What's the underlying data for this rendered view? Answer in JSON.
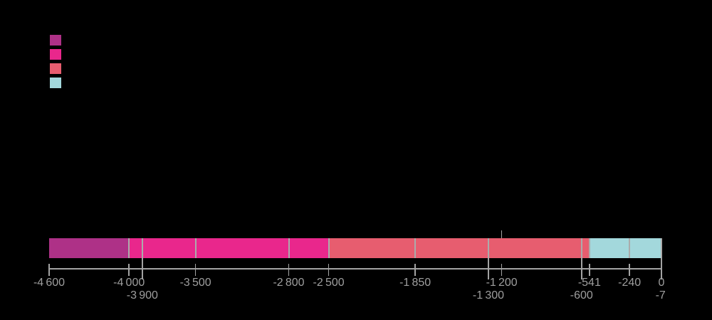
{
  "colors": {
    "background": "#000000",
    "axis_gray": "#A3A3A3",
    "label_gray": "#9E9E9E",
    "divider_gray": "#ABABAB",
    "purple": "#AE3187",
    "pink": "#E9278C",
    "salmon": "#E75D6F",
    "light_blue": "#A3D8DC"
  },
  "legend": {
    "swatches": [
      {
        "name": "legend-swatch-1",
        "color": "#AE3187"
      },
      {
        "name": "legend-swatch-2",
        "color": "#E9278C"
      },
      {
        "name": "legend-swatch-3",
        "color": "#E75D6F"
      },
      {
        "name": "legend-swatch-4",
        "color": "#A3D8DC"
      }
    ]
  },
  "chart_data": {
    "type": "bar",
    "subtype": "horizontal-stacked-timeline",
    "title": "",
    "xlabel": "",
    "ylabel": "",
    "grid": false,
    "legend_position": "top-left",
    "axis": {
      "min": -4600,
      "max": 0
    },
    "series": [
      {
        "name": "group-1",
        "color": "#AE3187",
        "segments": [
          {
            "start": -4600,
            "end": -4000
          }
        ]
      },
      {
        "name": "group-2",
        "color": "#E9278C",
        "segments": [
          {
            "start": -4000,
            "end": -3900
          },
          {
            "start": -3900,
            "end": -3500
          },
          {
            "start": -3500,
            "end": -2800
          },
          {
            "start": -2800,
            "end": -2500
          }
        ]
      },
      {
        "name": "group-3",
        "color": "#E75D6F",
        "segments": [
          {
            "start": -2500,
            "end": -1850
          },
          {
            "start": -1850,
            "end": -1300
          },
          {
            "start": -1300,
            "end": -600
          },
          {
            "start": -600,
            "end": -541
          }
        ]
      },
      {
        "name": "group-4",
        "color": "#A3D8DC",
        "segments": [
          {
            "start": -541,
            "end": -240
          },
          {
            "start": -240,
            "end": 0
          }
        ]
      }
    ],
    "ticks": [
      {
        "value": -4600,
        "label": "-4 600",
        "row": 1,
        "long": false,
        "line": true,
        "marker_above": false
      },
      {
        "value": -4000,
        "label": "-4 000",
        "row": 1,
        "long": false,
        "line": true,
        "marker_above": false
      },
      {
        "value": -3900,
        "label": "-3 900",
        "row": 2,
        "long": true,
        "line": true,
        "marker_above": false
      },
      {
        "value": -3500,
        "label": "-3 500",
        "row": 1,
        "long": false,
        "line": true,
        "marker_above": false
      },
      {
        "value": -2800,
        "label": "-2 800",
        "row": 1,
        "long": false,
        "line": true,
        "marker_above": false
      },
      {
        "value": -2500,
        "label": "-2 500",
        "row": 1,
        "long": false,
        "line": true,
        "marker_above": false
      },
      {
        "value": -1850,
        "label": "-1 850",
        "row": 1,
        "long": false,
        "line": true,
        "marker_above": false
      },
      {
        "value": -1300,
        "label": "-1 300",
        "row": 2,
        "long": true,
        "line": true,
        "marker_above": false
      },
      {
        "value": -1200,
        "label": "-1 200",
        "row": 1,
        "long": false,
        "line": true,
        "marker_above": true
      },
      {
        "value": -600,
        "label": "-600",
        "row": 2,
        "long": true,
        "line": true,
        "marker_above": false
      },
      {
        "value": -541,
        "label": "-541",
        "row": 1,
        "long": false,
        "line": true,
        "marker_above": false
      },
      {
        "value": -240,
        "label": "-240",
        "row": 1,
        "long": false,
        "line": true,
        "marker_above": false
      },
      {
        "value": 0,
        "label": "0",
        "row": 1,
        "long": true,
        "line": true,
        "marker_above": false
      },
      {
        "value": -7,
        "label": "-7",
        "row": 2,
        "long": false,
        "line": false,
        "marker_above": false
      }
    ]
  }
}
